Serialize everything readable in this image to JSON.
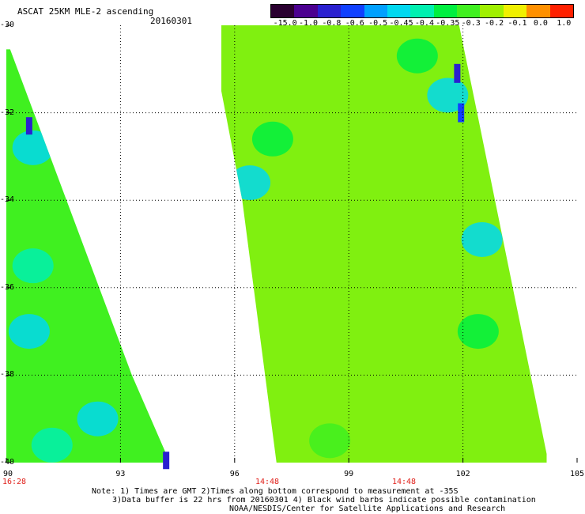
{
  "header": {
    "title": "ASCAT 25KM MLE-2 ascending",
    "date": "20160301"
  },
  "colorbar": {
    "labels": [
      "-15.0",
      "-1.0",
      "-0.8",
      "-0.6",
      "-0.5",
      "-0.45",
      "-0.4",
      "-0.35",
      "-0.3",
      "-0.2",
      "-0.1",
      "0.0",
      "1.0"
    ],
    "colors": [
      "#2a0030",
      "#4b0090",
      "#2a20d0",
      "#1040ff",
      "#00a0ff",
      "#00d8f0",
      "#00f0b0",
      "#00f040",
      "#40f020",
      "#a0f000",
      "#f0f000",
      "#ff9000",
      "#ff2000"
    ]
  },
  "map": {
    "lat_labels": [
      "-30",
      "-32",
      "-34",
      "-36",
      "-38",
      "-40"
    ],
    "lon_labels": [
      "90",
      "93",
      "96",
      "99",
      "102",
      "105"
    ],
    "time_labels": [
      "16:28",
      "14:48",
      "14:48"
    ]
  },
  "swaths": [
    {
      "name": "west-swath",
      "polygon": [
        [
          90.0,
          -30.55
        ],
        [
          90.1,
          -30.55
        ],
        [
          93.3,
          -38.0
        ],
        [
          94.25,
          -39.9
        ],
        [
          94.25,
          -40.0
        ],
        [
          90.0,
          -40.0
        ]
      ],
      "base_color": "#40f020",
      "patches": [
        {
          "lon": 90.7,
          "lat": -32.8,
          "value": "-0.45"
        },
        {
          "lon": 90.6,
          "lat": -37.0,
          "value": "-0.45"
        },
        {
          "lon": 92.4,
          "lat": -39.0,
          "value": "-0.45"
        },
        {
          "lon": 90.7,
          "lat": -35.5,
          "value": "-0.4"
        },
        {
          "lon": 91.2,
          "lat": -39.6,
          "value": "-0.4"
        }
      ]
    },
    {
      "name": "east-swath",
      "polygon": [
        [
          95.65,
          -30.0
        ],
        [
          101.9,
          -30.0
        ],
        [
          102.35,
          -31.9
        ],
        [
          104.2,
          -39.8
        ],
        [
          104.2,
          -40.0
        ],
        [
          97.1,
          -40.0
        ],
        [
          96.2,
          -34.0
        ],
        [
          95.65,
          -31.5
        ]
      ],
      "base_color": "#80f010",
      "patches": [
        {
          "lon": 101.6,
          "lat": -31.6,
          "value": "-0.45"
        },
        {
          "lon": 96.4,
          "lat": -33.6,
          "value": "-0.45"
        },
        {
          "lon": 102.5,
          "lat": -34.9,
          "value": "-0.45"
        },
        {
          "lon": 97.0,
          "lat": -32.6,
          "value": "-0.35"
        },
        {
          "lon": 100.8,
          "lat": -30.7,
          "value": "-0.35"
        },
        {
          "lon": 102.4,
          "lat": -37.0,
          "value": "-0.35"
        },
        {
          "lon": 98.5,
          "lat": -39.5,
          "value": "-0.3"
        }
      ],
      "dark_spots": [
        {
          "lon": 101.85,
          "lat": -31.1,
          "value": "-0.8"
        },
        {
          "lon": 101.95,
          "lat": -32.0,
          "value": "-0.6"
        }
      ]
    }
  ],
  "west_dark_spots": [
    {
      "lon": 90.6,
      "lat": -32.3,
      "value": "-0.8"
    },
    {
      "lon": 94.2,
      "lat": -39.95,
      "value": "-0.8"
    }
  ],
  "notes": [
    "Note: 1) Times are GMT 2)Times along bottom correspond to measurement at -35S",
    "3)Data buffer is 22 hrs from 20160301 4) Black wind barbs indicate possible contamination",
    "NOAA/NESDIS/Center for Satellite Applications and Research"
  ]
}
